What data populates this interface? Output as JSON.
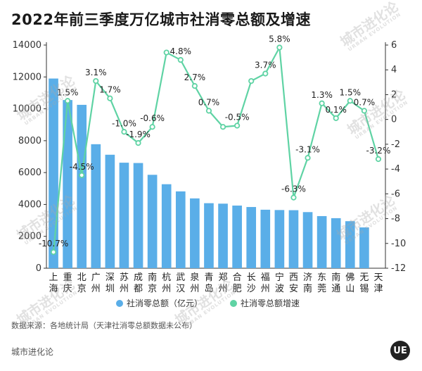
{
  "title": "2022年前三季度万亿城市社消零总额及增速",
  "source_note": "数据来源：各地统计局（天津社消零总额数据未公布）",
  "footer_brand": "城市进化论",
  "logo_text": "UE",
  "watermark": {
    "main": "城市进化论",
    "sub": "URBAN EVOLUTION"
  },
  "colors": {
    "bar": "#5aaee8",
    "line": "#5fd3a4",
    "marker_fill": "#ffffff"
  },
  "chart_data": {
    "type": "bar",
    "categories": [
      "上海",
      "重庆",
      "北京",
      "广州",
      "深圳",
      "苏州",
      "成都",
      "南京",
      "杭州",
      "武汉",
      "泉州",
      "青岛",
      "郑州",
      "合肥",
      "长沙",
      "福州",
      "宁波",
      "西安",
      "济南",
      "东莞",
      "南通",
      "佛山",
      "无锡",
      "天津"
    ],
    "series": [
      {
        "name": "社消零总额（亿元）",
        "type": "bar",
        "axis": "left",
        "values": [
          11900,
          10550,
          10250,
          7780,
          7120,
          6620,
          6600,
          5860,
          5270,
          4820,
          4380,
          4080,
          4050,
          3930,
          3840,
          3670,
          3650,
          3640,
          3520,
          3270,
          3140,
          2950,
          2560,
          null
        ]
      },
      {
        "name": "社消零总额增速",
        "type": "line",
        "axis": "right",
        "values": [
          -10.7,
          1.5,
          -4.5,
          3.1,
          1.7,
          -1.0,
          -1.9,
          -0.6,
          5.4,
          4.8,
          2.7,
          0.7,
          -0.6,
          -0.5,
          3.1,
          3.7,
          5.8,
          -6.3,
          -3.1,
          1.3,
          0.1,
          1.5,
          0.7,
          -3.2
        ],
        "labels": [
          "-10.7%",
          "1.5%",
          "-4.5%",
          "3.1%",
          "1.7%",
          "-1.0%",
          "-1.9%",
          "-0.6%",
          "",
          "4.8%",
          "2.7%",
          "0.7%",
          "",
          "-0.5%",
          "",
          "3.7%",
          "5.8%",
          "-6.3%",
          "-3.1%",
          "1.3%",
          "0.1%",
          "1.5%",
          "0.7%",
          "-3.2%"
        ]
      }
    ],
    "yleft": {
      "min": 0,
      "max": 14000,
      "ticks": [
        0,
        2000,
        4000,
        6000,
        8000,
        10000,
        12000,
        14000
      ]
    },
    "yright": {
      "min": -12,
      "max": 6,
      "ticks": [
        6,
        4,
        2,
        0,
        -2,
        -4,
        -6,
        -8,
        -10,
        -12
      ]
    },
    "legend": {
      "placement": "bottom"
    }
  }
}
